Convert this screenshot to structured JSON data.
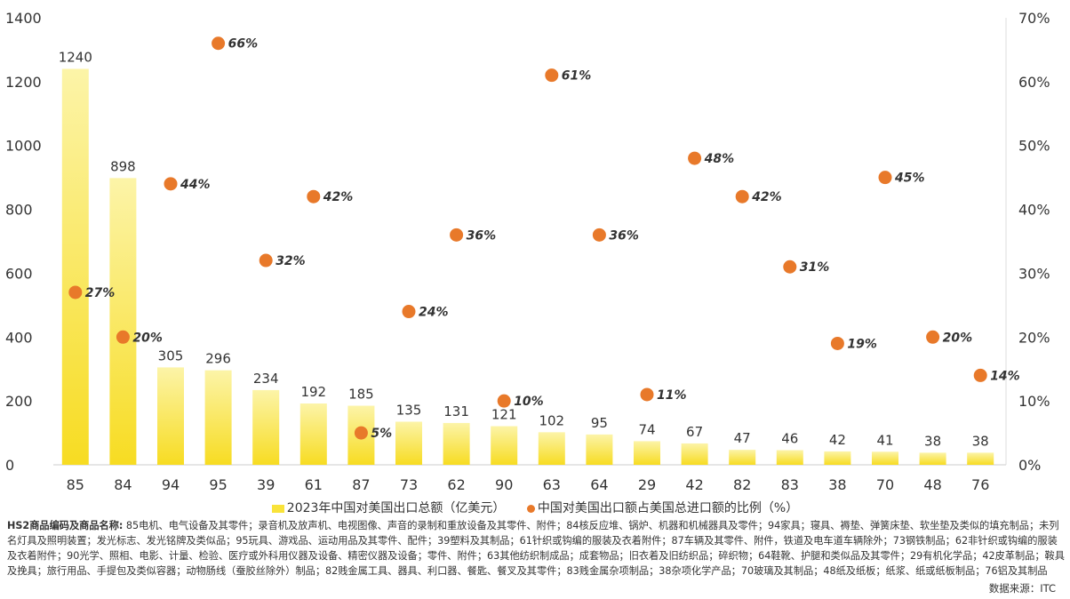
{
  "chart_data": {
    "type": "bar",
    "categories": [
      "85",
      "84",
      "94",
      "95",
      "39",
      "61",
      "87",
      "73",
      "62",
      "90",
      "63",
      "64",
      "29",
      "42",
      "82",
      "83",
      "38",
      "70",
      "48",
      "76"
    ],
    "y_left_ticks": [
      "0",
      "200",
      "400",
      "600",
      "800",
      "1000",
      "1200",
      "1400"
    ],
    "y_right_ticks": [
      "0%",
      "10%",
      "20%",
      "30%",
      "40%",
      "50%",
      "60%",
      "70%"
    ],
    "ylim_left": [
      0,
      1400
    ],
    "ylim_right": [
      0,
      70
    ],
    "grid": false,
    "legend_position": "bottom",
    "series": [
      {
        "name": "2023年中国对美国出口总额（亿美元）",
        "type": "bar",
        "axis": "left",
        "color": "#F9E33A",
        "values": [
          1240,
          898,
          305,
          296,
          234,
          192,
          185,
          135,
          131,
          121,
          102,
          95,
          74,
          67,
          47,
          46,
          42,
          41,
          38,
          38
        ],
        "labels": [
          "1240",
          "898",
          "305",
          "296",
          "234",
          "192",
          "185",
          "135",
          "131",
          "121",
          "102",
          "95",
          "74",
          "67",
          "47",
          "46",
          "42",
          "41",
          "38",
          "38"
        ]
      },
      {
        "name": "中国对美国出口额占美国总进口额的比例（%）",
        "type": "scatter",
        "axis": "right",
        "color": "#E8792A",
        "values": [
          27,
          20,
          44,
          66,
          32,
          42,
          5,
          24,
          36,
          10,
          61,
          36,
          11,
          48,
          42,
          31,
          19,
          45,
          20,
          14
        ],
        "labels": [
          "27%",
          "20%",
          "44%",
          "66%",
          "32%",
          "42%",
          "5%",
          "24%",
          "36%",
          "10%",
          "61%",
          "36%",
          "11%",
          "48%",
          "42%",
          "31%",
          "19%",
          "45%",
          "20%",
          "14%"
        ]
      }
    ]
  },
  "note": {
    "label": "HS2商品编码及商品名称:",
    "text": " 85电机、电气设备及其零件；录音机及放声机、电视图像、声音的录制和重放设备及其零件、附件；84核反应堆、锅炉、机器和机械器具及零件；94家具；寝具、褥垫、弹簧床垫、软坐垫及类似的填充制品；未列名灯具及照明装置；发光标志、发光铭牌及类似品；95玩具、游戏品、运动用品及其零件、配件；39塑料及其制品；61针织或钩编的服装及衣着附件；87车辆及其零件、附件，铁道及电车道车辆除外；73钢铁制品；62非针织或钩编的服装及衣着附件；90光学、照相、电影、计量、检验、医疗或外科用仪器及设备、精密仪器及设备；零件、附件；63其他纺织制成品；成套物品；旧衣着及旧纺织品；碎织物；64鞋靴、护腿和类似品及其零件；29有机化学品；42皮革制品；鞍具及挽具；旅行用品、手提包及类似容器；动物肠线（蚕胶丝除外）制品；82贱金属工具、器具、利口器、餐匙、餐叉及其零件；83贱金属杂项制品；38杂项化学产品；70玻璃及其制品；48纸及纸板；纸浆、纸或纸板制品；76铝及其制品"
  },
  "source": "数据来源：ITC",
  "colors": {
    "bar_light": "#FCF4A8",
    "bar_dark": "#F7DC22",
    "dot": "#E8792A"
  }
}
